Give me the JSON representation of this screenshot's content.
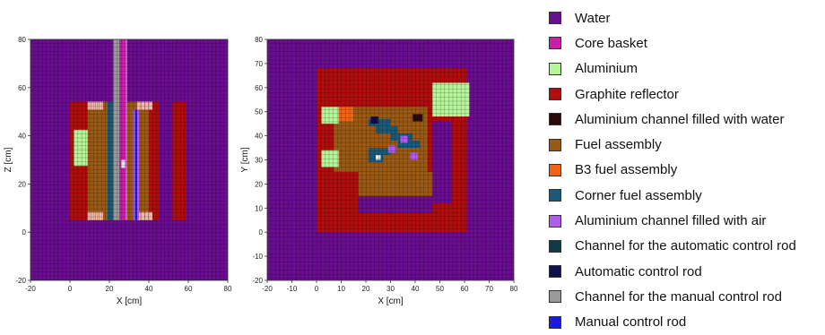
{
  "colors": {
    "water": "#6a0d91",
    "core_basket": "#c71fa8",
    "aluminium": "#b6f59a",
    "graphite": "#b10d0d",
    "al_channel_water": "#2b0a0a",
    "fuel": "#9b5a14",
    "b3_fuel": "#f06414",
    "corner_fuel": "#1a5a78",
    "al_channel_air": "#b15bf0",
    "auto_channel": "#0f3a46",
    "auto_rod": "#101050",
    "manual_channel": "#9a9a9a",
    "manual_rod": "#1a1ae0",
    "pink_cell": "#f2b8b0"
  },
  "legend": [
    {
      "label": "Water",
      "color": "#6a0d91",
      "icon": "swatch"
    },
    {
      "label": "Core basket",
      "color": "#c71fa8",
      "icon": "swatch"
    },
    {
      "label": "Aluminium",
      "color": "#b6f59a",
      "icon": "swatch"
    },
    {
      "label": "Graphite reflector",
      "color": "#b10d0d",
      "icon": "swatch"
    },
    {
      "label": "Aluminium channel filled with water",
      "color": "#2b0a0a",
      "icon": "swatch"
    },
    {
      "label": "Fuel assembly",
      "color": "#9b5a14",
      "icon": "swatch"
    },
    {
      "label": "B3 fuel assembly",
      "color": "#f06414",
      "icon": "swatch"
    },
    {
      "label": "Corner fuel assembly",
      "color": "#1a5a78",
      "icon": "swatch"
    },
    {
      "label": "Aluminium channel filled with air",
      "color": "#b15bf0",
      "icon": "swatch"
    },
    {
      "label": "Channel for the automatic control rod",
      "color": "#0f3a46",
      "icon": "swatch"
    },
    {
      "label": "Automatic control rod",
      "color": "#101050",
      "icon": "swatch"
    },
    {
      "label": "Channel for the manual control rod",
      "color": "#9a9a9a",
      "icon": "swatch"
    },
    {
      "label": "Manual control rod",
      "color": "#1a1ae0",
      "icon": "swatch"
    }
  ],
  "plots": [
    {
      "id": "side",
      "xlabel": "X [cm]",
      "ylabel": "Z [cm]",
      "xticks": [
        "-20",
        "0",
        "20",
        "40",
        "60",
        "80"
      ],
      "yticks": [
        "-20",
        "0",
        "20",
        "40",
        "60",
        "80"
      ]
    },
    {
      "id": "top",
      "xlabel": "X [cm]",
      "ylabel": "Y [cm]",
      "xticks": [
        "-20",
        "-10",
        "0",
        "10",
        "20",
        "30",
        "40",
        "50",
        "60",
        "70",
        "80"
      ],
      "yticks": [
        "-20",
        "-10",
        "0",
        "10",
        "20",
        "30",
        "40",
        "50",
        "60",
        "70",
        "80"
      ]
    }
  ]
}
